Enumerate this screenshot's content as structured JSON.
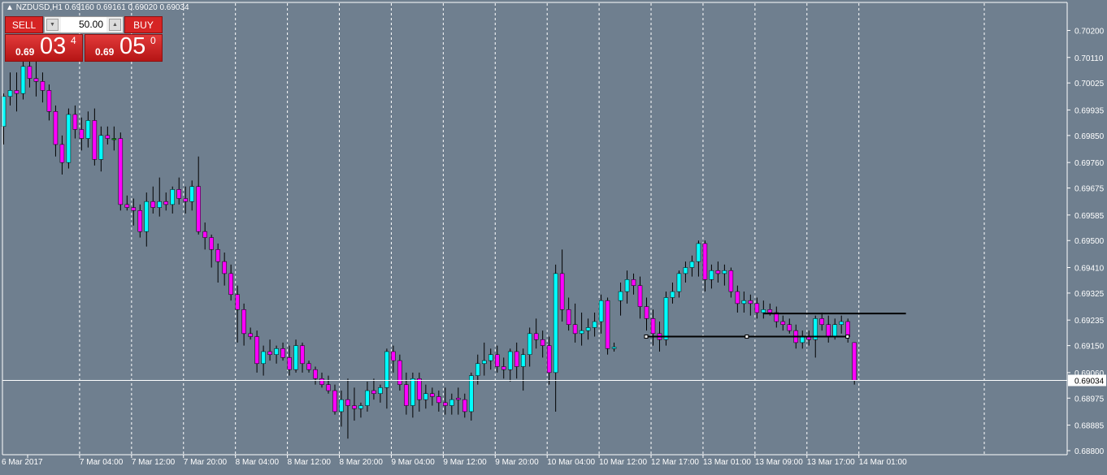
{
  "header": {
    "symbol_info": "NZDUSD,H1  0.69160 0.69161 0.69020 0.69034"
  },
  "trade_panel": {
    "sell_label": "SELL",
    "buy_label": "BUY",
    "lot_value": "50.00",
    "sell_price": {
      "prefix": "0.69",
      "big": "03",
      "sup": "4"
    },
    "buy_price": {
      "prefix": "0.69",
      "big": "05",
      "sup": "0"
    }
  },
  "colors": {
    "background": "#6f7f8f",
    "bull": "#00ffff",
    "bear": "#ff00ff",
    "doji": "#00b400",
    "line": "#ffffff",
    "level": "#000000"
  },
  "current_price_label": "0.69034",
  "chart_data": {
    "type": "candlestick",
    "symbol": "NZDUSD",
    "timeframe": "H1",
    "ylim": [
      0.688,
      0.7025
    ],
    "y_ticks": [
      "0.70200",
      "0.70110",
      "0.70025",
      "0.69935",
      "0.69850",
      "0.69760",
      "0.69675",
      "0.69585",
      "0.69500",
      "0.69410",
      "0.69325",
      "0.69235",
      "0.69150",
      "0.69060",
      "0.68975",
      "0.68885",
      "0.68800"
    ],
    "x_labels": [
      "6 Mar 2017",
      "7 Mar 04:00",
      "7 Mar 12:00",
      "7 Mar 20:00",
      "8 Mar 04:00",
      "8 Mar 12:00",
      "8 Mar 20:00",
      "9 Mar 04:00",
      "9 Mar 12:00",
      "9 Mar 20:00",
      "10 Mar 04:00",
      "10 Mar 12:00",
      "12 Mar 17:00",
      "13 Mar 01:00",
      "13 Mar 09:00",
      "13 Mar 17:00",
      "14 Mar 01:00"
    ],
    "current_price": 0.69034,
    "candles": [
      {
        "o": 0.6988,
        "h": 0.6999,
        "l": 0.6982,
        "c": 0.6998
      },
      {
        "o": 0.6998,
        "h": 0.7006,
        "l": 0.6995,
        "c": 0.7
      },
      {
        "o": 0.7,
        "h": 0.7006,
        "l": 0.6993,
        "c": 0.6999
      },
      {
        "o": 0.6999,
        "h": 0.7012,
        "l": 0.6997,
        "c": 0.7008
      },
      {
        "o": 0.7008,
        "h": 0.7015,
        "l": 0.7001,
        "c": 0.7004
      },
      {
        "o": 0.7004,
        "h": 0.701,
        "l": 0.6998,
        "c": 0.7003
      },
      {
        "o": 0.7003,
        "h": 0.7006,
        "l": 0.6996,
        "c": 0.7
      },
      {
        "o": 0.7,
        "h": 0.7002,
        "l": 0.699,
        "c": 0.6993
      },
      {
        "o": 0.6993,
        "h": 0.6995,
        "l": 0.6978,
        "c": 0.6982
      },
      {
        "o": 0.6982,
        "h": 0.6985,
        "l": 0.6972,
        "c": 0.6976
      },
      {
        "o": 0.6976,
        "h": 0.6994,
        "l": 0.6974,
        "c": 0.6992
      },
      {
        "o": 0.6992,
        "h": 0.6995,
        "l": 0.6984,
        "c": 0.6987
      },
      {
        "o": 0.6987,
        "h": 0.6991,
        "l": 0.698,
        "c": 0.6984
      },
      {
        "o": 0.6984,
        "h": 0.6993,
        "l": 0.6981,
        "c": 0.699
      },
      {
        "o": 0.699,
        "h": 0.6994,
        "l": 0.6975,
        "c": 0.6977
      },
      {
        "o": 0.6977,
        "h": 0.6988,
        "l": 0.6973,
        "c": 0.6985
      },
      {
        "o": 0.6985,
        "h": 0.6988,
        "l": 0.6982,
        "c": 0.6984
      },
      {
        "o": 0.6984,
        "h": 0.6988,
        "l": 0.698,
        "c": 0.6984
      },
      {
        "o": 0.6984,
        "h": 0.6986,
        "l": 0.696,
        "c": 0.6962
      },
      {
        "o": 0.6962,
        "h": 0.6965,
        "l": 0.696,
        "c": 0.6961
      },
      {
        "o": 0.6961,
        "h": 0.6964,
        "l": 0.6955,
        "c": 0.696
      },
      {
        "o": 0.696,
        "h": 0.6962,
        "l": 0.6951,
        "c": 0.6953
      },
      {
        "o": 0.6953,
        "h": 0.6966,
        "l": 0.6948,
        "c": 0.6963
      },
      {
        "o": 0.6963,
        "h": 0.6968,
        "l": 0.6959,
        "c": 0.6961
      },
      {
        "o": 0.6961,
        "h": 0.6971,
        "l": 0.6958,
        "c": 0.6963
      },
      {
        "o": 0.6963,
        "h": 0.6966,
        "l": 0.696,
        "c": 0.6962
      },
      {
        "o": 0.6962,
        "h": 0.6968,
        "l": 0.6959,
        "c": 0.6967
      },
      {
        "o": 0.6967,
        "h": 0.6971,
        "l": 0.6962,
        "c": 0.6964
      },
      {
        "o": 0.6964,
        "h": 0.6968,
        "l": 0.6959,
        "c": 0.6963
      },
      {
        "o": 0.6963,
        "h": 0.697,
        "l": 0.696,
        "c": 0.6968
      },
      {
        "o": 0.6968,
        "h": 0.6978,
        "l": 0.6952,
        "c": 0.6953
      },
      {
        "o": 0.6953,
        "h": 0.6956,
        "l": 0.6947,
        "c": 0.6951
      },
      {
        "o": 0.6951,
        "h": 0.6952,
        "l": 0.6941,
        "c": 0.6947
      },
      {
        "o": 0.6947,
        "h": 0.6949,
        "l": 0.6936,
        "c": 0.6943
      },
      {
        "o": 0.6943,
        "h": 0.6946,
        "l": 0.6935,
        "c": 0.6939
      },
      {
        "o": 0.6939,
        "h": 0.6942,
        "l": 0.693,
        "c": 0.6932
      },
      {
        "o": 0.6932,
        "h": 0.6935,
        "l": 0.6916,
        "c": 0.6927
      },
      {
        "o": 0.6927,
        "h": 0.6929,
        "l": 0.6915,
        "c": 0.6919
      },
      {
        "o": 0.6919,
        "h": 0.6921,
        "l": 0.6917,
        "c": 0.6918
      },
      {
        "o": 0.6918,
        "h": 0.692,
        "l": 0.6906,
        "c": 0.6909
      },
      {
        "o": 0.6909,
        "h": 0.6915,
        "l": 0.6905,
        "c": 0.6913
      },
      {
        "o": 0.6913,
        "h": 0.6917,
        "l": 0.691,
        "c": 0.6912
      },
      {
        "o": 0.6912,
        "h": 0.6915,
        "l": 0.6909,
        "c": 0.6914
      },
      {
        "o": 0.6914,
        "h": 0.6916,
        "l": 0.691,
        "c": 0.6911
      },
      {
        "o": 0.6911,
        "h": 0.6915,
        "l": 0.6905,
        "c": 0.6907
      },
      {
        "o": 0.6907,
        "h": 0.6917,
        "l": 0.6906,
        "c": 0.6915
      },
      {
        "o": 0.6915,
        "h": 0.6916,
        "l": 0.6906,
        "c": 0.6909
      },
      {
        "o": 0.6909,
        "h": 0.691,
        "l": 0.6906,
        "c": 0.6907
      },
      {
        "o": 0.6907,
        "h": 0.6908,
        "l": 0.6902,
        "c": 0.6904
      },
      {
        "o": 0.6904,
        "h": 0.6906,
        "l": 0.6901,
        "c": 0.6902
      },
      {
        "o": 0.6902,
        "h": 0.6905,
        "l": 0.6899,
        "c": 0.69
      },
      {
        "o": 0.69,
        "h": 0.6902,
        "l": 0.6892,
        "c": 0.6893
      },
      {
        "o": 0.6893,
        "h": 0.69,
        "l": 0.6888,
        "c": 0.6897
      },
      {
        "o": 0.6897,
        "h": 0.6904,
        "l": 0.6884,
        "c": 0.6895
      },
      {
        "o": 0.6895,
        "h": 0.6901,
        "l": 0.689,
        "c": 0.6894
      },
      {
        "o": 0.6894,
        "h": 0.6896,
        "l": 0.6891,
        "c": 0.6895
      },
      {
        "o": 0.6895,
        "h": 0.6903,
        "l": 0.6893,
        "c": 0.69
      },
      {
        "o": 0.69,
        "h": 0.6904,
        "l": 0.6897,
        "c": 0.6899
      },
      {
        "o": 0.6899,
        "h": 0.6902,
        "l": 0.6896,
        "c": 0.6901
      },
      {
        "o": 0.6901,
        "h": 0.6914,
        "l": 0.6894,
        "c": 0.6913
      },
      {
        "o": 0.6913,
        "h": 0.6915,
        "l": 0.6906,
        "c": 0.691
      },
      {
        "o": 0.691,
        "h": 0.6912,
        "l": 0.69,
        "c": 0.6902
      },
      {
        "o": 0.6902,
        "h": 0.6906,
        "l": 0.6892,
        "c": 0.6895
      },
      {
        "o": 0.6895,
        "h": 0.6906,
        "l": 0.6891,
        "c": 0.6904
      },
      {
        "o": 0.6904,
        "h": 0.6906,
        "l": 0.6893,
        "c": 0.6897
      },
      {
        "o": 0.6897,
        "h": 0.6902,
        "l": 0.6894,
        "c": 0.6899
      },
      {
        "o": 0.6899,
        "h": 0.6901,
        "l": 0.6895,
        "c": 0.6898
      },
      {
        "o": 0.6898,
        "h": 0.69,
        "l": 0.6893,
        "c": 0.6896
      },
      {
        "o": 0.6896,
        "h": 0.6901,
        "l": 0.6892,
        "c": 0.6895
      },
      {
        "o": 0.6895,
        "h": 0.6899,
        "l": 0.6892,
        "c": 0.6897
      },
      {
        "o": 0.68975,
        "h": 0.6901,
        "l": 0.6892,
        "c": 0.6897
      },
      {
        "o": 0.6897,
        "h": 0.6899,
        "l": 0.6891,
        "c": 0.6893
      },
      {
        "o": 0.6893,
        "h": 0.6906,
        "l": 0.689,
        "c": 0.6905
      },
      {
        "o": 0.6905,
        "h": 0.6912,
        "l": 0.6902,
        "c": 0.6909
      },
      {
        "o": 0.6909,
        "h": 0.6916,
        "l": 0.6905,
        "c": 0.691
      },
      {
        "o": 0.691,
        "h": 0.6914,
        "l": 0.6907,
        "c": 0.6912
      },
      {
        "o": 0.6912,
        "h": 0.6915,
        "l": 0.6906,
        "c": 0.6908
      },
      {
        "o": 0.6908,
        "h": 0.6911,
        "l": 0.6904,
        "c": 0.6907
      },
      {
        "o": 0.6907,
        "h": 0.6914,
        "l": 0.6903,
        "c": 0.6913
      },
      {
        "o": 0.6913,
        "h": 0.6916,
        "l": 0.6904,
        "c": 0.6908
      },
      {
        "o": 0.6908,
        "h": 0.6914,
        "l": 0.69,
        "c": 0.6912
      },
      {
        "o": 0.6912,
        "h": 0.6921,
        "l": 0.6908,
        "c": 0.6919
      },
      {
        "o": 0.6919,
        "h": 0.6924,
        "l": 0.6914,
        "c": 0.6917
      },
      {
        "o": 0.6917,
        "h": 0.692,
        "l": 0.6911,
        "c": 0.6915
      },
      {
        "o": 0.6915,
        "h": 0.6918,
        "l": 0.6902,
        "c": 0.6906
      },
      {
        "o": 0.6906,
        "h": 0.6942,
        "l": 0.6893,
        "c": 0.6939
      },
      {
        "o": 0.6939,
        "h": 0.6947,
        "l": 0.6923,
        "c": 0.6927
      },
      {
        "o": 0.6927,
        "h": 0.6931,
        "l": 0.692,
        "c": 0.6922
      },
      {
        "o": 0.6922,
        "h": 0.6929,
        "l": 0.6916,
        "c": 0.6919
      },
      {
        "o": 0.6919,
        "h": 0.6926,
        "l": 0.6915,
        "c": 0.692
      },
      {
        "o": 0.692,
        "h": 0.6924,
        "l": 0.6917,
        "c": 0.6921
      },
      {
        "o": 0.6921,
        "h": 0.6926,
        "l": 0.6918,
        "c": 0.6923
      },
      {
        "o": 0.6923,
        "h": 0.6932,
        "l": 0.6919,
        "c": 0.693
      },
      {
        "o": 0.693,
        "h": 0.6931,
        "l": 0.6912,
        "c": 0.6914
      },
      {
        "o": 0.6914,
        "h": 0.6916,
        "l": 0.6913,
        "c": 0.69145
      },
      {
        "o": 0.693,
        "h": 0.6936,
        "l": 0.6925,
        "c": 0.6933
      },
      {
        "o": 0.6933,
        "h": 0.694,
        "l": 0.6929,
        "c": 0.6937
      },
      {
        "o": 0.6937,
        "h": 0.6939,
        "l": 0.6932,
        "c": 0.6935
      },
      {
        "o": 0.6935,
        "h": 0.6938,
        "l": 0.6924,
        "c": 0.6928
      },
      {
        "o": 0.6928,
        "h": 0.6931,
        "l": 0.692,
        "c": 0.6924
      },
      {
        "o": 0.6924,
        "h": 0.6927,
        "l": 0.6915,
        "c": 0.6919
      },
      {
        "o": 0.6919,
        "h": 0.6923,
        "l": 0.6913,
        "c": 0.6917
      },
      {
        "o": 0.6917,
        "h": 0.6933,
        "l": 0.6915,
        "c": 0.6931
      },
      {
        "o": 0.6931,
        "h": 0.6936,
        "l": 0.6929,
        "c": 0.6933
      },
      {
        "o": 0.6933,
        "h": 0.694,
        "l": 0.6931,
        "c": 0.6939
      },
      {
        "o": 0.6939,
        "h": 0.6943,
        "l": 0.6936,
        "c": 0.6941
      },
      {
        "o": 0.6941,
        "h": 0.6945,
        "l": 0.6938,
        "c": 0.6943
      },
      {
        "o": 0.6943,
        "h": 0.695,
        "l": 0.6938,
        "c": 0.6949
      },
      {
        "o": 0.6949,
        "h": 0.695,
        "l": 0.6933,
        "c": 0.6937
      },
      {
        "o": 0.6937,
        "h": 0.6942,
        "l": 0.6934,
        "c": 0.694
      },
      {
        "o": 0.694,
        "h": 0.6943,
        "l": 0.6936,
        "c": 0.6939
      },
      {
        "o": 0.6939,
        "h": 0.6942,
        "l": 0.6935,
        "c": 0.694
      },
      {
        "o": 0.694,
        "h": 0.6941,
        "l": 0.6931,
        "c": 0.6933
      },
      {
        "o": 0.6933,
        "h": 0.6935,
        "l": 0.6926,
        "c": 0.6929
      },
      {
        "o": 0.6929,
        "h": 0.6933,
        "l": 0.6926,
        "c": 0.693
      },
      {
        "o": 0.693,
        "h": 0.6932,
        "l": 0.6925,
        "c": 0.6929
      },
      {
        "o": 0.6929,
        "h": 0.6931,
        "l": 0.6924,
        "c": 0.6926
      },
      {
        "o": 0.6926,
        "h": 0.693,
        "l": 0.6924,
        "c": 0.6927
      },
      {
        "o": 0.6927,
        "h": 0.6929,
        "l": 0.6925,
        "c": 0.6926
      },
      {
        "o": 0.6926,
        "h": 0.6928,
        "l": 0.6921,
        "c": 0.6923
      },
      {
        "o": 0.6923,
        "h": 0.6925,
        "l": 0.692,
        "c": 0.6922
      },
      {
        "o": 0.6922,
        "h": 0.6924,
        "l": 0.6919,
        "c": 0.692
      },
      {
        "o": 0.692,
        "h": 0.6922,
        "l": 0.6914,
        "c": 0.6916
      },
      {
        "o": 0.6916,
        "h": 0.692,
        "l": 0.6914,
        "c": 0.6918
      },
      {
        "o": 0.6918,
        "h": 0.692,
        "l": 0.6915,
        "c": 0.6917
      },
      {
        "o": 0.6917,
        "h": 0.6925,
        "l": 0.6911,
        "c": 0.6924
      },
      {
        "o": 0.6924,
        "h": 0.6926,
        "l": 0.692,
        "c": 0.6922
      },
      {
        "o": 0.6922,
        "h": 0.6925,
        "l": 0.6916,
        "c": 0.6918
      },
      {
        "o": 0.6918,
        "h": 0.6924,
        "l": 0.6917,
        "c": 0.6922
      },
      {
        "o": 0.6922,
        "h": 0.6925,
        "l": 0.6919,
        "c": 0.6923
      },
      {
        "o": 0.6923,
        "h": 0.6924,
        "l": 0.6916,
        "c": 0.6918
      },
      {
        "o": 0.6916,
        "h": 0.69161,
        "l": 0.6902,
        "c": 0.69034
      }
    ],
    "levels": [
      {
        "price": 0.69257,
        "from_index": 117,
        "to_index": 139
      },
      {
        "price": 0.6918,
        "from_index": 99,
        "to_index": 130
      }
    ]
  }
}
